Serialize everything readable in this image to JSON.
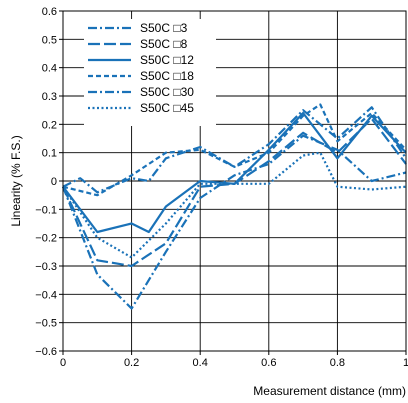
{
  "chart_data": {
    "type": "line",
    "xlabel": "Measurement distance (mm)",
    "ylabel": "Linearity (% F.S.)",
    "xlim": [
      0,
      1
    ],
    "ylim": [
      -0.6,
      0.6
    ],
    "x_ticks": [
      "0",
      "0.2",
      "0.4",
      "0.6",
      "0.8",
      "1"
    ],
    "y_ticks": [
      "0.6",
      "0.5",
      "0.4",
      "0.3",
      "0.2",
      "0.1",
      "0",
      "−0.1",
      "−0.2",
      "−0.3",
      "−0.4",
      "−0.5",
      "−0.6"
    ],
    "grid": true,
    "legend_position": "top-left",
    "line_color": "#1a72b8",
    "series": [
      {
        "name": "S50C □3",
        "dash": "dashdot",
        "x": [
          0,
          0.1,
          0.2,
          0.3,
          0.4,
          0.5,
          0.6,
          0.7,
          0.8,
          0.9,
          1.0
        ],
        "y": [
          -0.02,
          -0.33,
          -0.45,
          -0.25,
          -0.06,
          0.02,
          0.06,
          0.16,
          0.11,
          0.0,
          0.03
        ]
      },
      {
        "name": "S50C □8",
        "dash": "longdash",
        "x": [
          0,
          0.1,
          0.2,
          0.3,
          0.4,
          0.5,
          0.6,
          0.7,
          0.8,
          0.9,
          1.0
        ],
        "y": [
          -0.02,
          -0.28,
          -0.3,
          -0.22,
          -0.02,
          -0.01,
          0.07,
          0.17,
          0.1,
          0.22,
          0.06
        ]
      },
      {
        "name": "S50C □12",
        "dash": "solid",
        "x": [
          0,
          0.1,
          0.2,
          0.25,
          0.3,
          0.4,
          0.5,
          0.6,
          0.7,
          0.8,
          0.9,
          1.0
        ],
        "y": [
          -0.02,
          -0.18,
          -0.15,
          -0.18,
          -0.09,
          0.0,
          -0.01,
          0.11,
          0.24,
          0.08,
          0.23,
          0.1
        ]
      },
      {
        "name": "S50C □18",
        "dash": "dash",
        "x": [
          0,
          0.1,
          0.2,
          0.3,
          0.4,
          0.5,
          0.6,
          0.7,
          0.75,
          0.8,
          0.9,
          1.0
        ],
        "y": [
          -0.02,
          -0.05,
          0.02,
          0.1,
          0.11,
          0.05,
          0.1,
          0.23,
          0.27,
          0.14,
          0.24,
          0.11
        ]
      },
      {
        "name": "S50C □30",
        "dash": "dashdot",
        "x": [
          0,
          0.05,
          0.1,
          0.2,
          0.25,
          0.3,
          0.4,
          0.5,
          0.6,
          0.7,
          0.8,
          0.9,
          1.0
        ],
        "y": [
          -0.02,
          0.01,
          -0.04,
          0.01,
          0.0,
          0.08,
          0.12,
          0.05,
          0.13,
          0.25,
          0.15,
          0.26,
          0.08
        ]
      },
      {
        "name": "S50C □45",
        "dash": "dot",
        "x": [
          0,
          0.1,
          0.2,
          0.3,
          0.4,
          0.5,
          0.6,
          0.7,
          0.75,
          0.8,
          0.9,
          1.0
        ],
        "y": [
          -0.02,
          -0.2,
          -0.27,
          -0.15,
          -0.01,
          -0.01,
          -0.01,
          0.09,
          0.1,
          -0.02,
          -0.03,
          -0.02
        ]
      }
    ]
  }
}
